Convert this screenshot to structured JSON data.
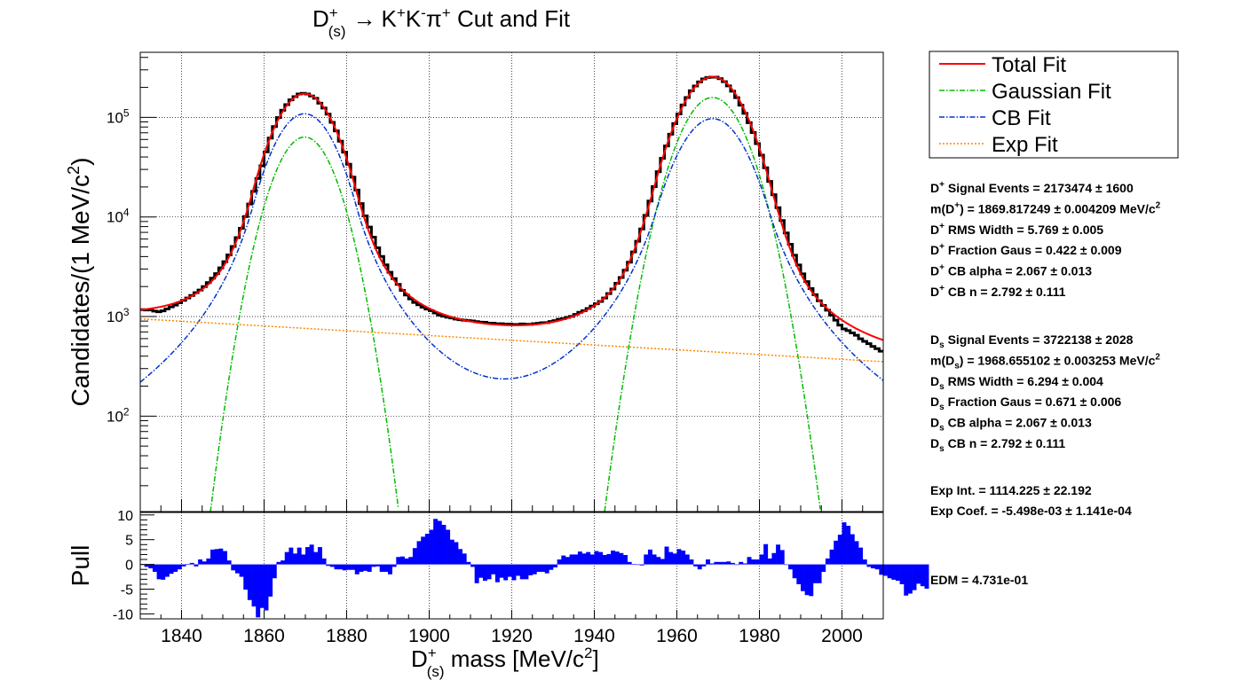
{
  "chart_data": [
    {
      "type": "line",
      "title": "D⁺(s) → K⁺K⁻π⁺ Cut and Fit",
      "ylabel": "Candidates/(1 MeV/c²)",
      "xlim": [
        1830,
        2010
      ],
      "ylim": [
        11,
        450000
      ],
      "y_scale": "log",
      "grid": true,
      "x_ticks": [
        1840,
        1860,
        1880,
        1900,
        1920,
        1940,
        1960,
        1980,
        2000
      ],
      "y_tick_labels": [
        {
          "value": 100,
          "base": "10",
          "exp": "2"
        },
        {
          "value": 1000,
          "base": "10",
          "exp": "3"
        },
        {
          "value": 10000,
          "base": "10",
          "exp": "4"
        },
        {
          "value": 100000,
          "base": "10",
          "exp": "5"
        }
      ],
      "legend": {
        "placement": "top-right outside",
        "entries": [
          {
            "name": "Total Fit",
            "color": "#ff0000",
            "style": "solid"
          },
          {
            "name": "Gaussian Fit",
            "color": "#00bb00",
            "style": "dash-dot"
          },
          {
            "name": "CB Fit",
            "color": "#0033cc",
            "style": "dash-dot"
          },
          {
            "name": "Exp Fit",
            "color": "#ff8800",
            "style": "dotted"
          }
        ]
      },
      "fit_parameters": {
        "dplus": {
          "nsig": 2173474,
          "mean": 1869.817,
          "rms": 5.769,
          "frac_gaus": 0.422,
          "cb_alpha": 2.067,
          "cb_n": 2.792
        },
        "ds": {
          "nsig": 3722138,
          "mean": 1968.655,
          "rms": 6.294,
          "frac_gaus": 0.671,
          "cb_alpha": 2.067,
          "cb_n": 2.792
        },
        "exp_int": 1114.225,
        "exp_coef": -0.005498
      },
      "series": [
        {
          "name": "Total Fit",
          "color": "#ff0000"
        },
        {
          "name": "Gaussian Fit",
          "color": "#00bb00"
        },
        {
          "name": "CB Fit",
          "color": "#0033cc"
        },
        {
          "name": "Exp Fit",
          "color": "#ff8800"
        }
      ],
      "data_hist": {
        "color": "#000000",
        "x_start": 1830,
        "bin_width": 1,
        "residual_factors": [
          1.0,
          0.98,
          0.97,
          0.93,
          0.9,
          0.9,
          0.92,
          0.94,
          0.95,
          0.97,
          0.99,
          1.0,
          1.01,
          1.02,
          1.02,
          1.03,
          1.04,
          1.05,
          1.05,
          1.06,
          1.06,
          1.05,
          1.05,
          1.03,
          0.99,
          0.98,
          0.96,
          0.92,
          0.89,
          0.88,
          0.92,
          0.98,
          1.02,
          1.03,
          1.03,
          1.02,
          1.02,
          1.01,
          1.02,
          1.01,
          1.0,
          0.99,
          1.0,
          0.98,
          0.99,
          1.0,
          0.99,
          1.0,
          1.0,
          1.01,
          1.02,
          1.04,
          1.08,
          1.1,
          1.12,
          1.14,
          1.16,
          1.13,
          1.12,
          1.09,
          1.06,
          1.04,
          1.02,
          0.98,
          0.96,
          0.95,
          0.94,
          0.95,
          0.95,
          0.96,
          0.97,
          0.96,
          0.95,
          0.96,
          0.97,
          0.98,
          0.98,
          0.99,
          1.0,
          1.01,
          1.02,
          1.02,
          1.02,
          1.03,
          1.02,
          1.03,
          1.02,
          1.03,
          1.02,
          1.03,
          1.02,
          1.02,
          1.03,
          1.02,
          1.01,
          1.02,
          1.02,
          1.02,
          1.01,
          1.02,
          1.02,
          1.03,
          1.02,
          1.02,
          1.01,
          1.02,
          1.03,
          1.02,
          1.02,
          1.02,
          1.01,
          0.99,
          0.99,
          1.0,
          1.0,
          1.01,
          1.0,
          1.0,
          0.99,
          1.0,
          0.99,
          0.99,
          1.0,
          1.01,
          1.01,
          1.02,
          1.01,
          1.0,
          1.0,
          1.0,
          1.0,
          1.01,
          1.01,
          1.02,
          1.01,
          1.01,
          1.01,
          1.0,
          0.99,
          1.0,
          1.0,
          0.99,
          0.98,
          0.97,
          0.96,
          0.95,
          0.95,
          0.95,
          0.96,
          0.97,
          0.99,
          1.01,
          1.03,
          1.06,
          1.09,
          1.11,
          1.12,
          1.13,
          1.12,
          1.11,
          1.09,
          1.07,
          1.05,
          1.03,
          1.0,
          0.99,
          0.97,
          0.94,
          0.9,
          0.86,
          0.84,
          0.86,
          0.86,
          0.86,
          0.83,
          0.82,
          0.81,
          0.79,
          0.78,
          0.76
        ]
      }
    },
    {
      "type": "bar",
      "title": "",
      "xlabel": "D⁺(s) mass [MeV/c²]",
      "ylabel": "Pull",
      "xlim": [
        1830,
        2010
      ],
      "ylim": [
        -11,
        10.5
      ],
      "x_ticks": [
        1840,
        1860,
        1880,
        1900,
        1920,
        1940,
        1960,
        1980,
        2000
      ],
      "y_ticks": [
        10,
        5,
        0,
        -5,
        -10
      ],
      "grid": true,
      "color": "#0000ff",
      "x_start": 1830,
      "bin_width": 1,
      "values": [
        0.0,
        -0.5,
        -0.8,
        -1.5,
        -3.0,
        -3.1,
        -2.5,
        -1.9,
        -1.5,
        -1.0,
        -0.4,
        0.1,
        0.3,
        -0.4,
        1.0,
        0.6,
        1.2,
        3.0,
        3.1,
        3.2,
        2.7,
        0.8,
        -1.2,
        -1.8,
        -2.5,
        -5.1,
        -7.2,
        -8.5,
        -10.7,
        -8.8,
        -9.3,
        -6.5,
        -2.8,
        0.5,
        0.8,
        2.5,
        3.4,
        2.2,
        3.4,
        2.0,
        3.5,
        4.0,
        2.5,
        3.5,
        1.2,
        -0.3,
        -0.5,
        -1.0,
        -1.0,
        -1.2,
        -1.1,
        -1.1,
        -2.0,
        -1.5,
        -1.3,
        -1.5,
        -0.5,
        -0.4,
        -1.5,
        -1.5,
        -2.0,
        -0.5,
        1.5,
        1.6,
        1.2,
        1.5,
        3.3,
        4.7,
        5.6,
        6.2,
        7.0,
        9.2,
        8.8,
        8.0,
        7.0,
        5.0,
        4.5,
        3.1,
        2.2,
        0.5,
        -0.5,
        -3.8,
        -2.7,
        -3.3,
        -3.0,
        -2.0,
        -3.6,
        -2.7,
        -3.2,
        -2.5,
        -3.2,
        -2.3,
        -3.0,
        -3.0,
        -2.2,
        -2.0,
        -1.5,
        -1.5,
        -1.8,
        -1.1,
        -0.6,
        1.0,
        1.8,
        1.5,
        2.0,
        2.0,
        2.6,
        2.2,
        2.5,
        2.0,
        2.7,
        2.5,
        1.9,
        2.1,
        2.8,
        2.6,
        2.3,
        1.9,
        0.5,
        0.1,
        -0.1,
        -0.2,
        2.0,
        3.0,
        2.0,
        1.5,
        1.1,
        3.6,
        2.5,
        2.2,
        3.1,
        2.8,
        2.0,
        1.0,
        -0.4,
        -1.0,
        -0.4,
        1.0,
        0.2,
        0.5,
        0.5,
        0.5,
        0.6,
        0.3,
        -0.1,
        0.5,
        0.2,
        1.5,
        1.0,
        1.0,
        2.0,
        4.1,
        1.2,
        2.3,
        4.0,
        2.9,
        0.0,
        -1.0,
        -2.8,
        -4.0,
        -5.4,
        -6.2,
        -6.4,
        -3.8,
        -3.8,
        -1.5,
        1.2,
        3.0,
        4.8,
        6.0,
        8.5,
        7.8,
        6.1,
        4.7,
        3.4,
        1.0,
        -0.5,
        -0.8,
        -1.0,
        -2.1,
        -2.3,
        -2.8,
        -3.1,
        -3.3,
        -4.0,
        -6.3,
        -5.9,
        -5.2,
        -3.9,
        -4.4,
        -4.9
      ]
    }
  ],
  "stats": {
    "dplus_lines": [
      {
        "pre": "D",
        "sup": "+",
        "sub": "",
        "text": " Signal Events = 2173474 ±  1600"
      },
      {
        "pre": "m(D",
        "sup": "+",
        "sub": "",
        "text": ") = 1869.817249 ± 0.004209 MeV/c",
        "tail_sup": "2"
      },
      {
        "pre": "D",
        "sup": "+",
        "sub": "",
        "text": " RMS Width = 5.769 ± 0.005"
      },
      {
        "pre": "D",
        "sup": "+",
        "sub": "",
        "text": " Fraction Gaus = 0.422 ± 0.009"
      },
      {
        "pre": "D",
        "sup": "+",
        "sub": "",
        "text": " CB alpha = 2.067 ± 0.013"
      },
      {
        "pre": "D",
        "sup": "+",
        "sub": "",
        "text": " CB n = 2.792 ± 0.111"
      }
    ],
    "ds_lines": [
      {
        "pre": "D",
        "sup": "",
        "sub": "s",
        "text": " Signal Events = 3722138 ±  2028"
      },
      {
        "pre": "m(D",
        "sup": "",
        "sub": "s",
        "text": ") = 1968.655102 ± 0.003253 MeV/c",
        "tail_sup": "2"
      },
      {
        "pre": "D",
        "sup": "",
        "sub": "s",
        "text": " RMS Width = 6.294 ± 0.004"
      },
      {
        "pre": "D",
        "sup": "",
        "sub": "s",
        "text": " Fraction Gaus = 0.671 ± 0.006"
      },
      {
        "pre": "D",
        "sup": "",
        "sub": "s",
        "text": " CB alpha = 2.067 ± 0.013"
      },
      {
        "pre": "D",
        "sup": "",
        "sub": "s",
        "text": " CB n = 2.792 ± 0.111"
      }
    ],
    "exp_lines": [
      "Exp Int. = 1114.225 ± 22.192",
      "Exp Coef. = -5.498e-03 ± 1.141e-04"
    ],
    "edm": "EDM = 4.731e-01"
  },
  "title_parts": {
    "d": "D",
    "sup": "+",
    "sub": "(s)",
    "arrow": "→",
    "kplus": "K",
    "kplus_sup": "+",
    "kminus": "K",
    "kminus_sup": "-",
    "pi": "π",
    "pi_sup": "+",
    "rest": " Cut and Fit"
  },
  "ylabel_parts": {
    "main": "Candidates/(1 MeV/c",
    "sup": "2",
    "close": ")"
  },
  "xlabel_parts": {
    "d": "D",
    "sup": "+",
    "sub": "(s)",
    "rest": " mass [MeV/c",
    "unit_sup": "2",
    "close": "]"
  },
  "pull_label": "Pull"
}
